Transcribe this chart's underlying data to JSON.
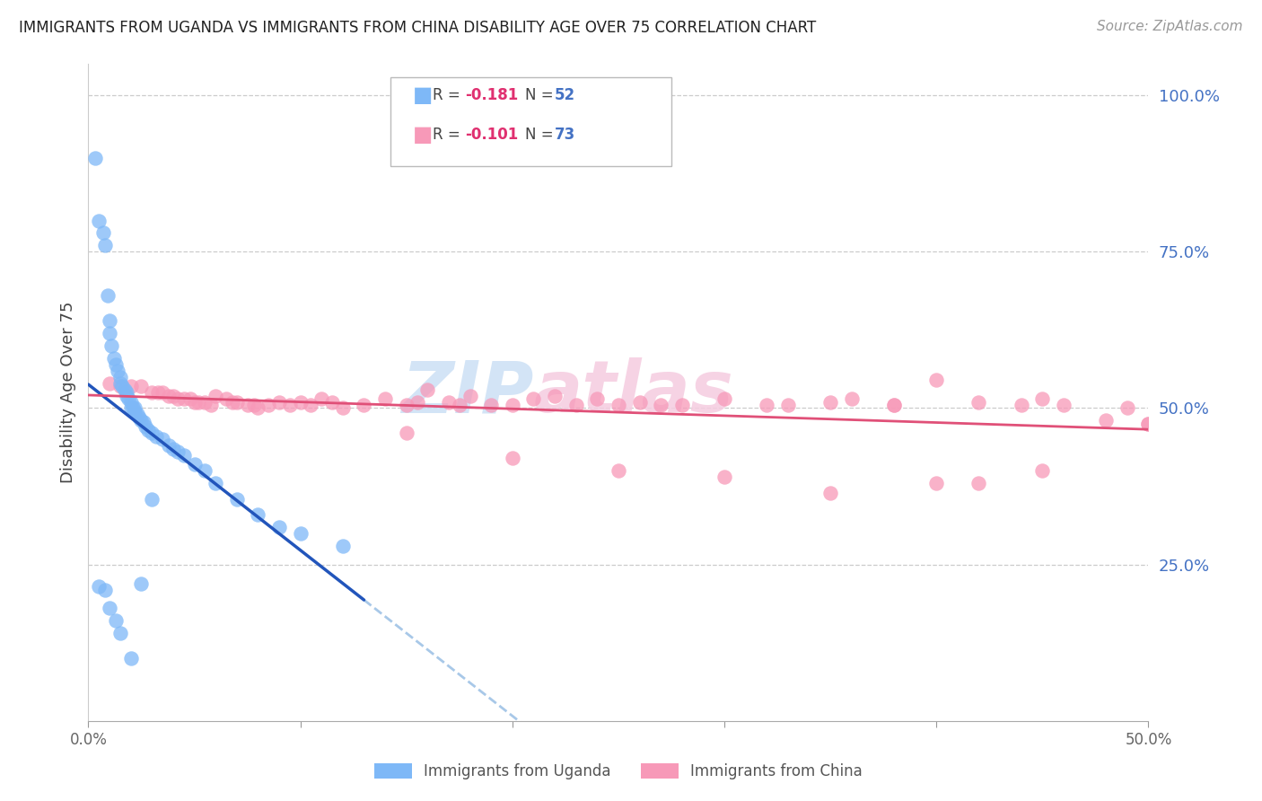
{
  "title": "IMMIGRANTS FROM UGANDA VS IMMIGRANTS FROM CHINA DISABILITY AGE OVER 75 CORRELATION CHART",
  "source": "Source: ZipAtlas.com",
  "ylabel": "Disability Age Over 75",
  "right_yticks_labels": [
    "100.0%",
    "75.0%",
    "50.0%",
    "25.0%"
  ],
  "right_yticks_vals": [
    1.0,
    0.75,
    0.5,
    0.25
  ],
  "xlim": [
    0.0,
    0.5
  ],
  "ylim": [
    0.0,
    1.05
  ],
  "uganda_color": "#7eb8f7",
  "china_color": "#f799b8",
  "uganda_line_color": "#2255bb",
  "china_line_color": "#e05078",
  "dashed_line_color": "#a8c8e8",
  "legend_ug_r": "-0.181",
  "legend_ug_n": "52",
  "legend_ch_r": "-0.101",
  "legend_ch_n": "73",
  "uganda_x": [
    0.003,
    0.005,
    0.007,
    0.008,
    0.009,
    0.01,
    0.01,
    0.011,
    0.012,
    0.013,
    0.014,
    0.015,
    0.015,
    0.016,
    0.017,
    0.018,
    0.018,
    0.019,
    0.02,
    0.02,
    0.021,
    0.022,
    0.022,
    0.023,
    0.024,
    0.025,
    0.026,
    0.027,
    0.028,
    0.03,
    0.032,
    0.035,
    0.038,
    0.04,
    0.042,
    0.045,
    0.05,
    0.055,
    0.06,
    0.07,
    0.08,
    0.09,
    0.1,
    0.12,
    0.005,
    0.008,
    0.01,
    0.013,
    0.015,
    0.02,
    0.025,
    0.03
  ],
  "uganda_y": [
    0.9,
    0.8,
    0.78,
    0.76,
    0.68,
    0.64,
    0.62,
    0.6,
    0.58,
    0.57,
    0.56,
    0.55,
    0.54,
    0.535,
    0.53,
    0.525,
    0.52,
    0.515,
    0.51,
    0.5,
    0.5,
    0.5,
    0.495,
    0.49,
    0.485,
    0.48,
    0.478,
    0.47,
    0.465,
    0.46,
    0.455,
    0.45,
    0.44,
    0.435,
    0.43,
    0.425,
    0.41,
    0.4,
    0.38,
    0.355,
    0.33,
    0.31,
    0.3,
    0.28,
    0.215,
    0.21,
    0.18,
    0.16,
    0.14,
    0.1,
    0.22,
    0.355
  ],
  "china_x": [
    0.01,
    0.015,
    0.02,
    0.025,
    0.03,
    0.033,
    0.035,
    0.038,
    0.04,
    0.042,
    0.045,
    0.048,
    0.05,
    0.052,
    0.055,
    0.058,
    0.06,
    0.065,
    0.068,
    0.07,
    0.075,
    0.078,
    0.08,
    0.085,
    0.09,
    0.095,
    0.1,
    0.105,
    0.11,
    0.115,
    0.12,
    0.13,
    0.14,
    0.15,
    0.155,
    0.16,
    0.17,
    0.175,
    0.18,
    0.19,
    0.2,
    0.21,
    0.22,
    0.23,
    0.24,
    0.25,
    0.26,
    0.27,
    0.28,
    0.3,
    0.32,
    0.33,
    0.35,
    0.36,
    0.38,
    0.4,
    0.42,
    0.44,
    0.45,
    0.46,
    0.48,
    0.49,
    0.5,
    0.15,
    0.2,
    0.25,
    0.3,
    0.35,
    0.4,
    0.45,
    0.38,
    0.42,
    0.5
  ],
  "china_y": [
    0.54,
    0.535,
    0.535,
    0.535,
    0.525,
    0.525,
    0.525,
    0.52,
    0.52,
    0.515,
    0.515,
    0.515,
    0.51,
    0.51,
    0.51,
    0.505,
    0.52,
    0.515,
    0.51,
    0.51,
    0.505,
    0.505,
    0.5,
    0.505,
    0.51,
    0.505,
    0.51,
    0.505,
    0.515,
    0.51,
    0.5,
    0.505,
    0.515,
    0.505,
    0.51,
    0.53,
    0.51,
    0.505,
    0.52,
    0.505,
    0.505,
    0.515,
    0.52,
    0.505,
    0.515,
    0.505,
    0.51,
    0.505,
    0.505,
    0.515,
    0.505,
    0.505,
    0.51,
    0.515,
    0.505,
    0.545,
    0.51,
    0.505,
    0.515,
    0.505,
    0.48,
    0.5,
    0.475,
    0.46,
    0.42,
    0.4,
    0.39,
    0.365,
    0.38,
    0.4,
    0.505,
    0.38,
    0.475
  ]
}
